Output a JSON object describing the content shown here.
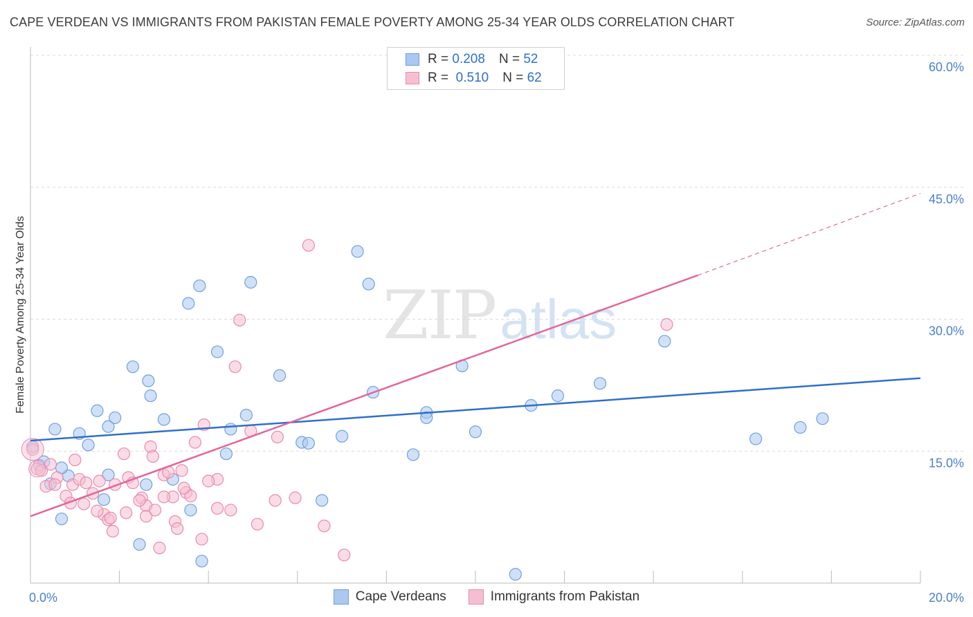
{
  "title": "CAPE VERDEAN VS IMMIGRANTS FROM PAKISTAN FEMALE POVERTY AMONG 25-34 YEAR OLDS CORRELATION CHART",
  "source": "Source: ZipAtlas.com",
  "watermark": {
    "zip": "ZIP",
    "atlas": "atlas"
  },
  "legend_top": [
    {
      "r_label": "R =",
      "r_value": "0.208",
      "n_label": "N =",
      "n_value": "52"
    },
    {
      "r_label": "R =",
      "r_value": "0.510",
      "n_label": "N =",
      "n_value": "62"
    }
  ],
  "colors": {
    "blue_fill": "#aac8f0",
    "blue_stroke": "#6f9fe0",
    "blue_line": "#2e6fcb",
    "pink_fill": "#f6bfd1",
    "pink_stroke": "#ea8aab",
    "pink_line": "#e0679a",
    "grid": "#d9d9d9",
    "tick_text": "#4a7fcf"
  },
  "chart_data": {
    "type": "scatter",
    "title": "CAPE VERDEAN VS IMMIGRANTS FROM PAKISTAN FEMALE POVERTY AMONG 25-34 YEAR OLDS CORRELATION CHART",
    "xlabel": "",
    "ylabel": "Female Poverty Among 25-34 Year Olds",
    "xlim": [
      0,
      20
    ],
    "ylim": [
      0,
      60
    ],
    "x_tick_labels": [
      "0.0%",
      "20.0%"
    ],
    "y_tick_labels": [
      "15.0%",
      "30.0%",
      "45.0%",
      "60.0%"
    ],
    "y_ticks": [
      15,
      30,
      45,
      60
    ],
    "legend_position": "top-center",
    "series": [
      {
        "name": "Cape Verdeans",
        "color": "blue",
        "R": 0.208,
        "N": 52,
        "trend": {
          "x0": 0,
          "y0": 16.2,
          "x1": 20,
          "y1": 23.3
        },
        "points": [
          [
            0.05,
            15.5
          ],
          [
            0.2,
            13.4
          ],
          [
            0.3,
            13.8
          ],
          [
            0.55,
            17.5
          ],
          [
            0.7,
            7.3
          ],
          [
            1.1,
            17.0
          ],
          [
            1.5,
            19.6
          ],
          [
            1.3,
            15.7
          ],
          [
            1.75,
            17.8
          ],
          [
            1.9,
            18.8
          ],
          [
            2.3,
            24.6
          ],
          [
            2.65,
            23.0
          ],
          [
            2.7,
            21.3
          ],
          [
            3.0,
            18.6
          ],
          [
            3.55,
            31.8
          ],
          [
            3.8,
            33.8
          ],
          [
            4.2,
            26.3
          ],
          [
            4.4,
            14.7
          ],
          [
            4.5,
            17.5
          ],
          [
            4.85,
            19.1
          ],
          [
            4.95,
            34.2
          ],
          [
            5.6,
            23.6
          ],
          [
            6.1,
            16.0
          ],
          [
            6.25,
            15.9
          ],
          [
            6.55,
            9.4
          ],
          [
            7.0,
            16.7
          ],
          [
            7.6,
            34.0
          ],
          [
            7.7,
            21.7
          ],
          [
            7.35,
            37.7
          ],
          [
            8.6,
            14.6
          ],
          [
            8.9,
            19.4
          ],
          [
            8.9,
            18.8
          ],
          [
            9.7,
            24.7
          ],
          [
            10.0,
            17.2
          ],
          [
            11.25,
            20.2
          ],
          [
            11.85,
            21.3
          ],
          [
            12.8,
            22.7
          ],
          [
            14.25,
            27.5
          ],
          [
            16.3,
            16.4
          ],
          [
            17.3,
            17.7
          ],
          [
            17.8,
            18.7
          ],
          [
            10.9,
            1.0
          ],
          [
            2.45,
            4.4
          ],
          [
            3.85,
            2.5
          ],
          [
            0.85,
            12.2
          ],
          [
            1.75,
            12.3
          ],
          [
            1.65,
            9.5
          ],
          [
            2.6,
            11.2
          ],
          [
            3.2,
            11.8
          ],
          [
            3.6,
            8.3
          ],
          [
            0.45,
            11.3
          ],
          [
            0.7,
            13.1
          ]
        ]
      },
      {
        "name": "Immigrants from Pakistan",
        "color": "pink",
        "R": 0.51,
        "N": 62,
        "trend": {
          "x0": 0,
          "y0": 7.6,
          "x1": 15.0,
          "y1": 35.0,
          "dashed_to": {
            "x": 20,
            "y": 44.3
          }
        },
        "points": [
          [
            0.05,
            15.2
          ],
          [
            0.15,
            13.0
          ],
          [
            0.35,
            11.0
          ],
          [
            0.45,
            13.5
          ],
          [
            0.6,
            12.0
          ],
          [
            0.8,
            9.9
          ],
          [
            0.95,
            11.2
          ],
          [
            1.1,
            11.8
          ],
          [
            1.2,
            9.0
          ],
          [
            1.4,
            10.2
          ],
          [
            1.55,
            11.6
          ],
          [
            1.65,
            7.8
          ],
          [
            1.75,
            7.2
          ],
          [
            1.8,
            7.4
          ],
          [
            1.9,
            11.2
          ],
          [
            2.1,
            14.7
          ],
          [
            2.2,
            12.0
          ],
          [
            2.3,
            11.4
          ],
          [
            2.5,
            9.7
          ],
          [
            2.6,
            8.8
          ],
          [
            2.6,
            7.6
          ],
          [
            2.7,
            15.5
          ],
          [
            2.8,
            8.3
          ],
          [
            2.9,
            4.0
          ],
          [
            3.0,
            12.3
          ],
          [
            3.1,
            12.6
          ],
          [
            3.2,
            9.8
          ],
          [
            3.25,
            7.0
          ],
          [
            3.3,
            6.2
          ],
          [
            3.4,
            12.8
          ],
          [
            3.5,
            10.3
          ],
          [
            3.6,
            9.9
          ],
          [
            3.7,
            16.0
          ],
          [
            3.85,
            5.0
          ],
          [
            3.9,
            18.0
          ],
          [
            4.2,
            8.5
          ],
          [
            4.2,
            11.8
          ],
          [
            4.6,
            24.6
          ],
          [
            4.7,
            29.9
          ],
          [
            4.95,
            17.3
          ],
          [
            5.1,
            6.7
          ],
          [
            5.5,
            9.4
          ],
          [
            5.55,
            16.6
          ],
          [
            5.95,
            9.7
          ],
          [
            6.25,
            38.4
          ],
          [
            6.6,
            6.5
          ],
          [
            7.05,
            3.2
          ],
          [
            14.3,
            29.4
          ],
          [
            0.25,
            12.8
          ],
          [
            0.55,
            11.2
          ],
          [
            0.9,
            9.1
          ],
          [
            1.25,
            11.4
          ],
          [
            1.5,
            8.2
          ],
          [
            1.85,
            5.9
          ],
          [
            2.15,
            8.0
          ],
          [
            2.45,
            9.4
          ],
          [
            2.75,
            14.4
          ],
          [
            3.0,
            9.8
          ],
          [
            3.45,
            10.8
          ],
          [
            4.0,
            11.6
          ],
          [
            4.5,
            8.3
          ],
          [
            1.0,
            14.0
          ]
        ]
      }
    ]
  }
}
